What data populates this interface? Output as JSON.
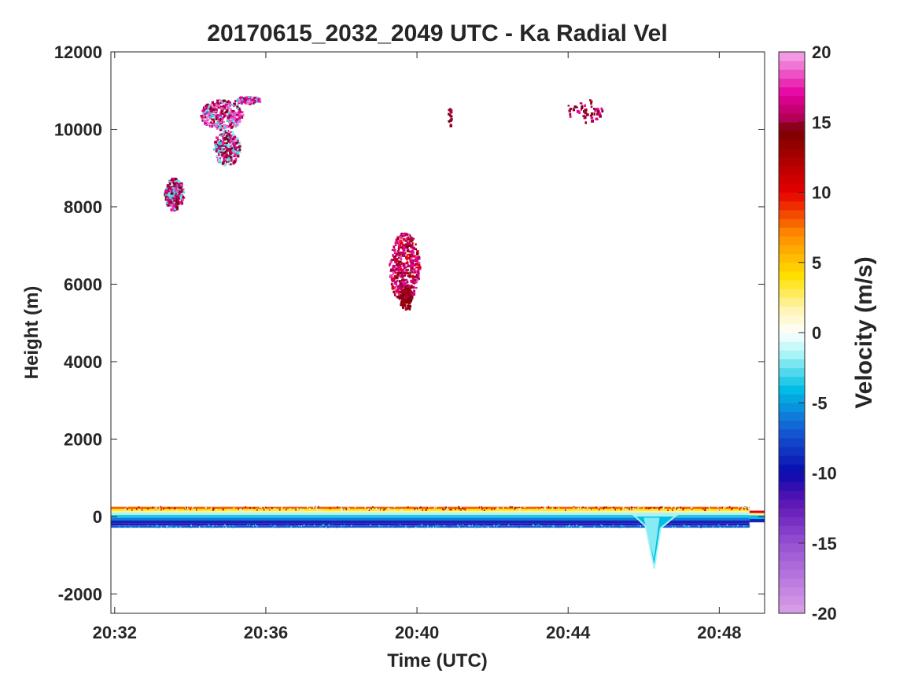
{
  "chart_data": {
    "type": "heatmap",
    "title": "20170615_2032_2049 UTC - Ka Radial Vel",
    "xlabel": "Time (UTC)",
    "ylabel": "Height (m)",
    "xticks": [
      "20:32",
      "20:36",
      "20:40",
      "20:44",
      "20:48"
    ],
    "yticks": [
      "12000",
      "10000",
      "8000",
      "6000",
      "4000",
      "2000",
      "0",
      "-2000"
    ],
    "ylim": [
      -2500,
      12000
    ],
    "xlim_minutes": [
      -0.1,
      17.2
    ],
    "colorbar": {
      "label": "Velocity (m/s)",
      "range": [
        -20,
        20
      ],
      "ticks": [
        "20",
        "15",
        "10",
        "5",
        "0",
        "-5",
        "-10",
        "-15",
        "-20"
      ]
    },
    "features": [
      {
        "name": "upper cloud 1",
        "time_min": [
          1.3,
          2.0
        ],
        "height_m": [
          7800,
          9000
        ],
        "velocity": "mixed 15 to 20 with -3 core"
      },
      {
        "name": "upper cloud 2",
        "time_min": [
          1.9,
          3.8
        ],
        "height_m": [
          9000,
          10800
        ],
        "velocity": "mixed 15 to 20 with -3 core"
      },
      {
        "name": "mid cloud",
        "time_min": [
          7.0,
          8.3
        ],
        "height_m": [
          5400,
          7600
        ],
        "velocity": "about 15 to 18"
      },
      {
        "name": "surface band",
        "time_min": [
          -0.1,
          17.2
        ],
        "height_m": [
          -300,
          250
        ],
        "velocity": "layered -12 to 8"
      },
      {
        "name": "dip near 20:46",
        "time_min": [
          14.0,
          14.6
        ],
        "height_m": [
          -1300,
          0
        ],
        "velocity": "about -3"
      }
    ]
  }
}
